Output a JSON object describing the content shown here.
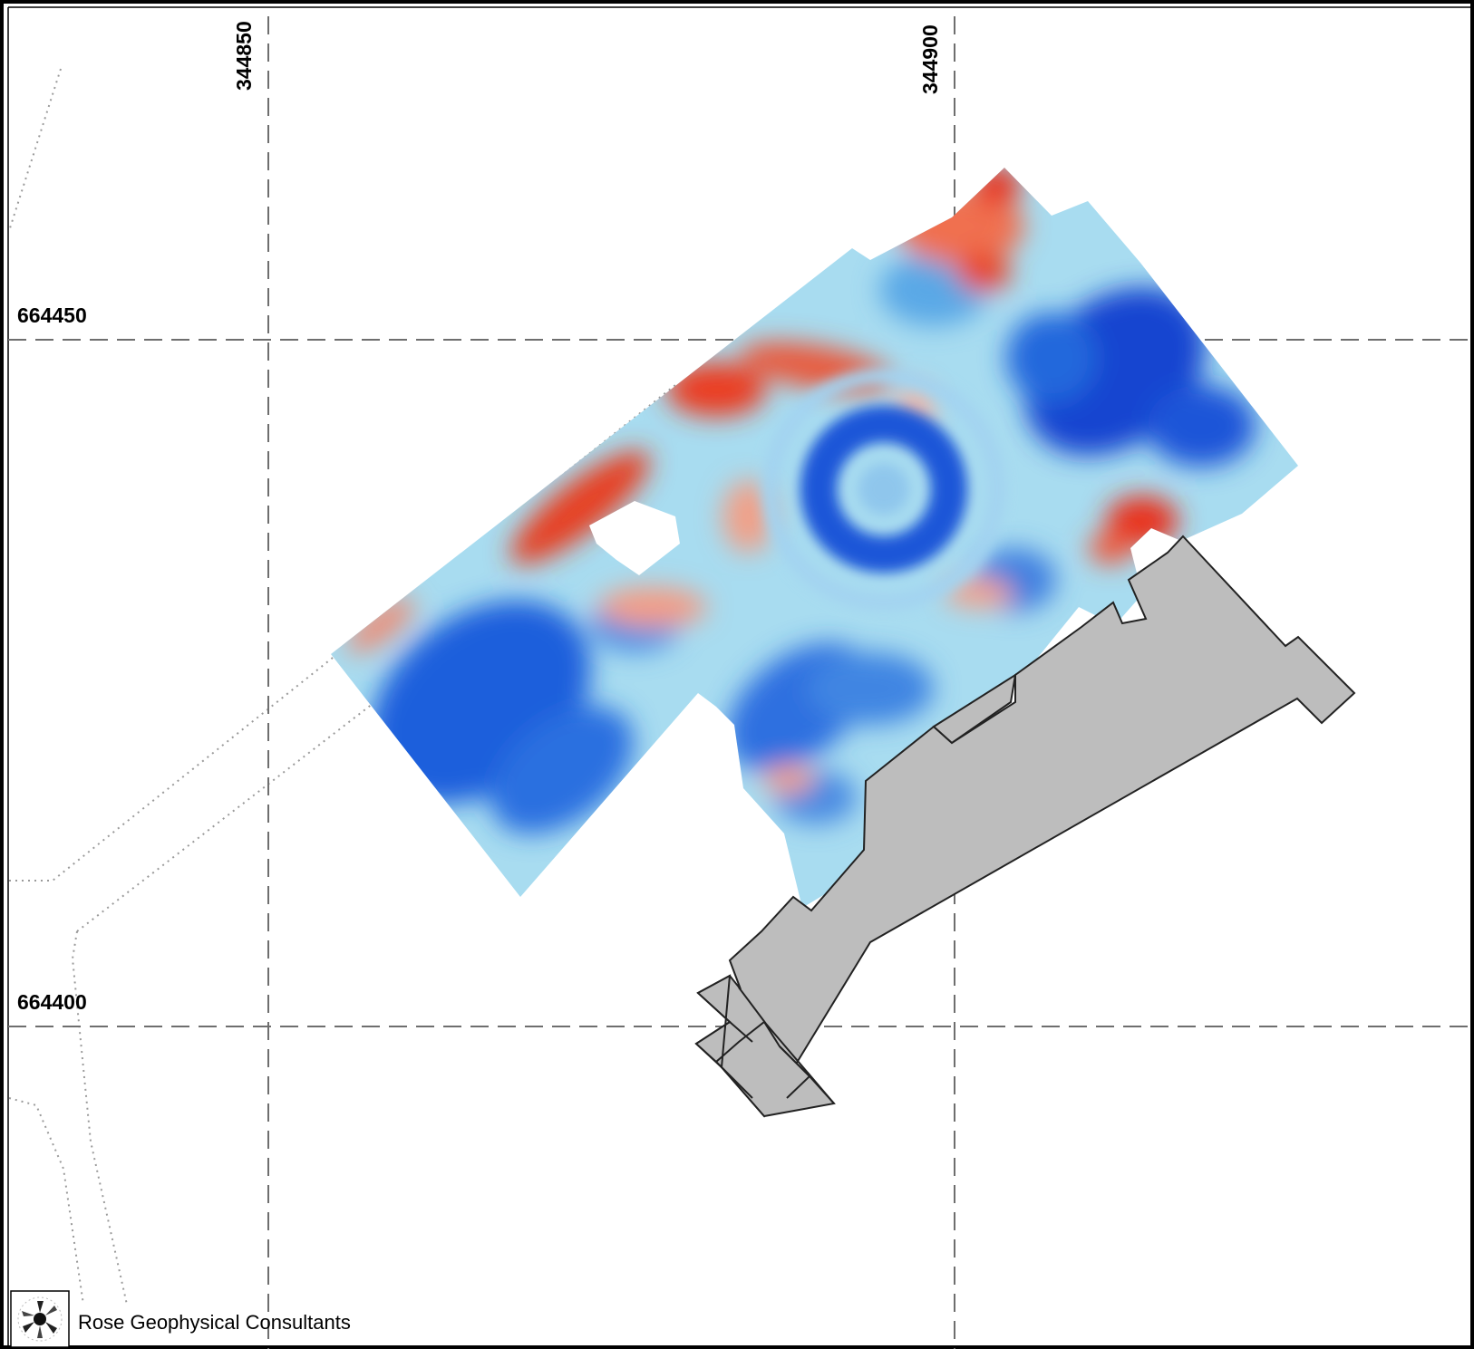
{
  "map": {
    "grid_eastings": [
      "344850",
      "344900"
    ],
    "grid_northings": [
      "664450",
      "664400"
    ],
    "credit": "Rose Geophysical Consultants",
    "icons": {
      "logo": "rose-geophysical-logo-icon"
    },
    "colors": {
      "building_fill": "#bdbdbd",
      "survey_high": "#e8321e",
      "survey_low": "#1552d6",
      "survey_mid": "#a8dcf0",
      "grid_line": "#777777"
    }
  }
}
